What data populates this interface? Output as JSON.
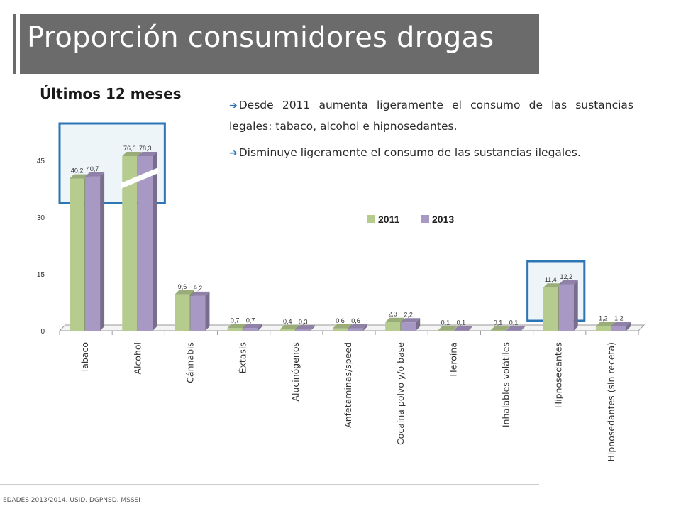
{
  "slide": {
    "title": "Proporción consumidores drogas",
    "subtitle": "Últimos 12 meses",
    "bullets": [
      "Desde 2011 aumenta ligeramente el consumo de las sustancias legales: tabaco, alcohol e hipnosedantes.",
      "Disminuye ligeramente el consumo de las sustancias ilegales."
    ],
    "footer": "EDADES 2013/2014. USID. DGPNSD. MSSSI"
  },
  "colors": {
    "series_2011": "#b5cc8e",
    "series_2013": "#a898c4",
    "highlight": "#2e75b6",
    "title_bg": "#6b6b6b"
  },
  "chart_data": {
    "type": "bar",
    "categories": [
      "Tabaco",
      "Alcohol",
      "Cánnabis",
      "Éxtasis",
      "Alucinógenos",
      "Anfetaminas/speed",
      "Cocaína polvo y/o base",
      "Heroína",
      "Inhalables volátiles",
      "Hipnosedantes",
      "Hipnosedantes (sin receta)"
    ],
    "series": [
      {
        "name": "2011",
        "values": [
          40.2,
          76.6,
          9.6,
          0.7,
          0.4,
          0.6,
          2.3,
          0.1,
          0.1,
          11.4,
          1.2
        ],
        "labels": [
          "40,2",
          "76,6",
          "9,6",
          "0,7",
          "0,4",
          "0,6",
          "2,3",
          "0,1",
          "0,1",
          "11,4",
          "1,2"
        ]
      },
      {
        "name": "2013",
        "values": [
          40.7,
          78.3,
          9.2,
          0.7,
          0.3,
          0.6,
          2.2,
          0.1,
          0.1,
          12.2,
          1.2
        ],
        "labels": [
          "40,7",
          "78,3",
          "9,2",
          "0,7",
          "0,3",
          "0,6",
          "2,2",
          "0,1",
          "0,1",
          "12,2",
          "1,2"
        ]
      }
    ],
    "yticks": [
      "0",
      "15",
      "30",
      "45"
    ],
    "ylim": [
      0,
      45
    ],
    "axis_break": "Alcohol",
    "legend": "top-right",
    "highlighted": [
      "Tabaco",
      "Alcohol",
      "Hipnosedantes"
    ]
  }
}
